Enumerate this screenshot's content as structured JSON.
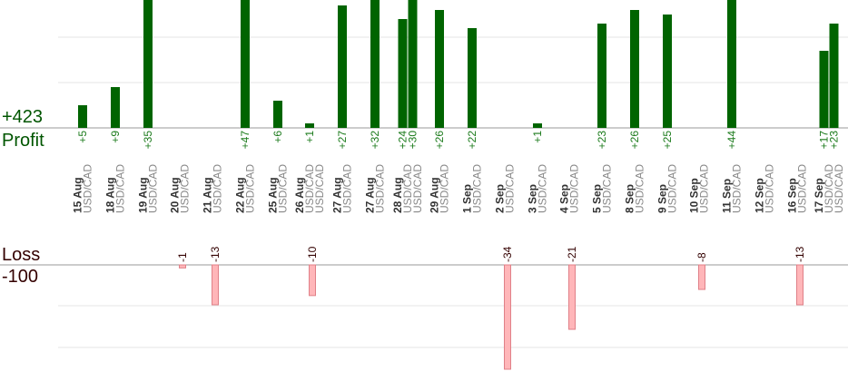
{
  "summary": {
    "profit_total": "+423",
    "profit_label": "Profit",
    "loss_label": "Loss",
    "loss_total": "-100"
  },
  "colors": {
    "profit_bar": "#006400",
    "profit_text": "#1a7a1a",
    "loss_bar_fill": "#ffb6b9",
    "loss_bar_stroke": "#e08088",
    "loss_text": "#330000",
    "date_text": "#333333",
    "pair_text": "#888888",
    "grid": "#e4e4e4",
    "axis": "#999999"
  },
  "chart_data": {
    "type": "bar",
    "title": "",
    "profit_ylim": [
      0,
      30
    ],
    "loss_ylim": [
      -34,
      0
    ],
    "columns": [
      {
        "date": "15 Aug",
        "pair": "USD/CAD",
        "profits": [
          5
        ],
        "losses": []
      },
      {
        "date": "18 Aug",
        "pair": "USD/CAD",
        "profits": [
          9
        ],
        "losses": []
      },
      {
        "date": "19 Aug",
        "pair": "USD/CAD",
        "profits": [
          35
        ],
        "losses": []
      },
      {
        "date": "20 Aug",
        "pair": "USD/CAD",
        "profits": [],
        "losses": [
          -1
        ]
      },
      {
        "date": "21 Aug",
        "pair": "USD/CAD",
        "profits": [],
        "losses": [
          -13
        ]
      },
      {
        "date": "22 Aug",
        "pair": "USD/CAD",
        "profits": [
          47
        ],
        "losses": []
      },
      {
        "date": "25 Aug",
        "pair": "USD/CAD",
        "profits": [
          6
        ],
        "losses": []
      },
      {
        "date": "26 Aug",
        "pair": "USD/CAD USD/CAD",
        "profits": [
          1
        ],
        "losses": [
          -10
        ]
      },
      {
        "date": "27 Aug",
        "pair": "USD/CAD",
        "profits": [
          27
        ],
        "losses": []
      },
      {
        "date": "27 Aug",
        "pair": "USD/CAD",
        "profits": [
          32
        ],
        "losses": []
      },
      {
        "date": "28 Aug",
        "pair": "USD/CAD USD/CAD",
        "profits": [
          24,
          30
        ],
        "losses": []
      },
      {
        "date": "29 Aug",
        "pair": "USD/CAD",
        "profits": [
          26
        ],
        "losses": []
      },
      {
        "date": "1 Sep",
        "pair": "USD/CAD",
        "profits": [
          22
        ],
        "losses": []
      },
      {
        "date": "2 Sep",
        "pair": "USD/CAD",
        "profits": [],
        "losses": [
          -34
        ]
      },
      {
        "date": "3 Sep",
        "pair": "USD/CAD",
        "profits": [
          1
        ],
        "losses": []
      },
      {
        "date": "4 Sep",
        "pair": "USD/CAD",
        "profits": [],
        "losses": [
          -21
        ]
      },
      {
        "date": "5 Sep",
        "pair": "USD/CAD",
        "profits": [
          23
        ],
        "losses": []
      },
      {
        "date": "8 Sep",
        "pair": "USD/CAD",
        "profits": [
          26
        ],
        "losses": []
      },
      {
        "date": "9 Sep",
        "pair": "USD/CAD",
        "profits": [
          25
        ],
        "losses": []
      },
      {
        "date": "10 Sep",
        "pair": "USD/CAD",
        "profits": [],
        "losses": [
          -8
        ]
      },
      {
        "date": "11 Sep",
        "pair": "USD/CAD",
        "profits": [
          44
        ],
        "losses": []
      },
      {
        "date": "12 Sep",
        "pair": "USD/CAD",
        "profits": [],
        "losses": []
      },
      {
        "date": "16 Sep",
        "pair": "USD/CAD",
        "profits": [],
        "losses": [
          -13
        ]
      },
      {
        "date": "17 Sep",
        "pair": "USD/CAD USD/CAD",
        "profits": [
          17,
          23
        ],
        "losses": []
      }
    ]
  }
}
